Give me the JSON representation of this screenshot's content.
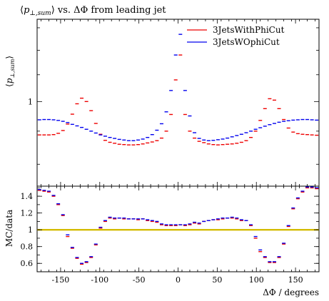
{
  "chart_data": [
    {
      "panel": "main",
      "type": "scatter",
      "title": "⟨p⊥,sum⟩ vs. ΔΦ from leading jet",
      "title_parts": {
        "mean_open": "⟨",
        "var": "p",
        "sub": "⊥,sum",
        "mean_close": "⟩",
        "rest": " vs. ΔΦ from leading jet"
      },
      "ylabel": "⟨p⊥,sum⟩",
      "ylabel_parts": {
        "mean_open": "⟨",
        "var": "p",
        "sub": "⊥,sum",
        "mean_close": "⟩"
      },
      "xlabel": "",
      "log_y": true,
      "ylim": [
        0.74,
        1.34
      ],
      "xlim": [
        -180,
        180
      ],
      "y_ticks": [
        {
          "value": 1,
          "label": "1"
        }
      ],
      "legend_position": "top-right",
      "series": [
        {
          "name": "3JetsWithPhiCut",
          "color": "#ee0000",
          "x": [
            -177,
            -171,
            -165,
            -159,
            -153,
            -147,
            -141,
            -135,
            -129,
            -123,
            -117,
            -111,
            -105,
            -99,
            -93,
            -87,
            -81,
            -75,
            -69,
            -63,
            -57,
            -51,
            -45,
            -39,
            -33,
            -27,
            -21,
            -15,
            -9,
            -3,
            3,
            9,
            15,
            21,
            27,
            33,
            39,
            45,
            51,
            57,
            63,
            69,
            75,
            81,
            87,
            93,
            99,
            105,
            111,
            117,
            123,
            129,
            135,
            141,
            147,
            153,
            159,
            165,
            171,
            177
          ],
          "y": [
            0.888,
            0.888,
            0.888,
            0.889,
            0.893,
            0.902,
            0.923,
            0.956,
            0.992,
            1.012,
            1.0,
            0.968,
            0.925,
            0.89,
            0.871,
            0.865,
            0.862,
            0.859,
            0.858,
            0.857,
            0.857,
            0.858,
            0.86,
            0.863,
            0.866,
            0.87,
            0.878,
            0.9,
            0.955,
            1.08,
            1.18,
            0.955,
            0.9,
            0.878,
            0.868,
            0.864,
            0.86,
            0.858,
            0.857,
            0.858,
            0.859,
            0.86,
            0.862,
            0.865,
            0.87,
            0.88,
            0.9,
            0.935,
            0.975,
            1.01,
            1.005,
            0.975,
            0.938,
            0.91,
            0.897,
            0.892,
            0.89,
            0.889,
            0.888,
            0.887
          ]
        },
        {
          "name": "3JetsWOphiCut",
          "color": "#0000ee",
          "x": [
            -177,
            -171,
            -165,
            -159,
            -153,
            -147,
            -141,
            -135,
            -129,
            -123,
            -117,
            -111,
            -105,
            -99,
            -93,
            -87,
            -81,
            -75,
            -69,
            -63,
            -57,
            -51,
            -45,
            -39,
            -33,
            -27,
            -21,
            -15,
            -9,
            -3,
            3,
            9,
            15,
            21,
            27,
            33,
            39,
            45,
            51,
            57,
            63,
            69,
            75,
            81,
            87,
            93,
            99,
            105,
            111,
            117,
            123,
            129,
            135,
            141,
            147,
            153,
            159,
            165,
            171,
            177
          ],
          "y": [
            0.937,
            0.938,
            0.938,
            0.937,
            0.935,
            0.932,
            0.928,
            0.922,
            0.917,
            0.912,
            0.906,
            0.9,
            0.894,
            0.888,
            0.884,
            0.88,
            0.877,
            0.874,
            0.872,
            0.87,
            0.87,
            0.872,
            0.875,
            0.88,
            0.889,
            0.903,
            0.924,
            0.964,
            1.04,
            1.18,
            1.27,
            1.04,
            0.95,
            0.895,
            0.877,
            0.872,
            0.87,
            0.871,
            0.873,
            0.875,
            0.878,
            0.882,
            0.886,
            0.89,
            0.895,
            0.9,
            0.906,
            0.911,
            0.916,
            0.921,
            0.925,
            0.929,
            0.932,
            0.934,
            0.936,
            0.937,
            0.938,
            0.938,
            0.937,
            0.936
          ]
        }
      ]
    },
    {
      "panel": "ratio",
      "type": "scatter",
      "ylabel": "MC/data",
      "xlabel": "ΔΦ / degrees",
      "xlim": [
        -180,
        180
      ],
      "ylim": [
        0.5,
        1.52
      ],
      "x_ticks": [
        {
          "value": -150,
          "label": "-150"
        },
        {
          "value": -100,
          "label": "-100"
        },
        {
          "value": -50,
          "label": "-50"
        },
        {
          "value": 0,
          "label": "0"
        },
        {
          "value": 50,
          "label": "50"
        },
        {
          "value": 100,
          "label": "100"
        },
        {
          "value": 150,
          "label": "150"
        }
      ],
      "y_ticks": [
        {
          "value": 0.6,
          "label": "0.6"
        },
        {
          "value": 0.8,
          "label": "0.8"
        },
        {
          "value": 1,
          "label": "1"
        },
        {
          "value": 1.2,
          "label": "1.2"
        },
        {
          "value": 1.4,
          "label": "1.4"
        }
      ],
      "reference_line": {
        "value": 1.0,
        "color": "#d4bb00"
      },
      "series": [
        {
          "color": "#ee0000",
          "x": [
            -177,
            -171,
            -165,
            -159,
            -153,
            -147,
            -141,
            -135,
            -129,
            -123,
            -117,
            -111,
            -105,
            -99,
            -93,
            -87,
            -81,
            -75,
            -69,
            -63,
            -57,
            -51,
            -45,
            -39,
            -33,
            -27,
            -21,
            -15,
            -9,
            -3,
            3,
            9,
            15,
            21,
            27,
            33,
            39,
            45,
            51,
            57,
            63,
            69,
            75,
            81,
            87,
            93,
            99,
            105,
            111,
            117,
            123,
            129,
            135,
            141,
            147,
            153,
            159,
            165,
            171,
            177
          ],
          "y": [
            1.47,
            1.46,
            1.45,
            1.4,
            1.3,
            1.17,
            0.92,
            0.78,
            0.66,
            0.59,
            0.61,
            0.67,
            0.82,
            1.02,
            1.1,
            1.14,
            1.13,
            1.14,
            1.13,
            1.13,
            1.13,
            1.12,
            1.13,
            1.11,
            1.1,
            1.09,
            1.06,
            1.05,
            1.05,
            1.05,
            1.06,
            1.05,
            1.06,
            1.08,
            1.07,
            1.1,
            1.11,
            1.12,
            1.12,
            1.13,
            1.14,
            1.14,
            1.13,
            1.11,
            1.11,
            1.05,
            0.9,
            0.74,
            0.67,
            0.61,
            0.61,
            0.67,
            0.83,
            1.04,
            1.25,
            1.37,
            1.45,
            1.5,
            1.5,
            1.49
          ]
        },
        {
          "color": "#0000ee",
          "x": [
            -177,
            -171,
            -165,
            -159,
            -153,
            -147,
            -141,
            -135,
            -129,
            -123,
            -117,
            -111,
            -105,
            -99,
            -93,
            -87,
            -81,
            -75,
            -69,
            -63,
            -57,
            -51,
            -45,
            -39,
            -33,
            -27,
            -21,
            -15,
            -9,
            -3,
            3,
            9,
            15,
            21,
            27,
            33,
            39,
            45,
            51,
            57,
            63,
            69,
            75,
            81,
            87,
            93,
            99,
            105,
            111,
            117,
            123,
            129,
            135,
            141,
            147,
            153,
            159,
            165,
            171,
            177
          ],
          "y": [
            1.48,
            1.47,
            1.46,
            1.41,
            1.31,
            1.18,
            0.94,
            0.79,
            0.67,
            0.6,
            0.62,
            0.68,
            0.83,
            1.03,
            1.11,
            1.15,
            1.14,
            1.14,
            1.14,
            1.13,
            1.13,
            1.13,
            1.13,
            1.12,
            1.11,
            1.1,
            1.07,
            1.06,
            1.06,
            1.06,
            1.06,
            1.06,
            1.07,
            1.09,
            1.08,
            1.1,
            1.11,
            1.12,
            1.13,
            1.14,
            1.14,
            1.15,
            1.14,
            1.12,
            1.11,
            1.06,
            0.92,
            0.76,
            0.68,
            0.62,
            0.62,
            0.68,
            0.84,
            1.05,
            1.26,
            1.38,
            1.46,
            1.51,
            1.51,
            1.5
          ]
        }
      ]
    }
  ]
}
